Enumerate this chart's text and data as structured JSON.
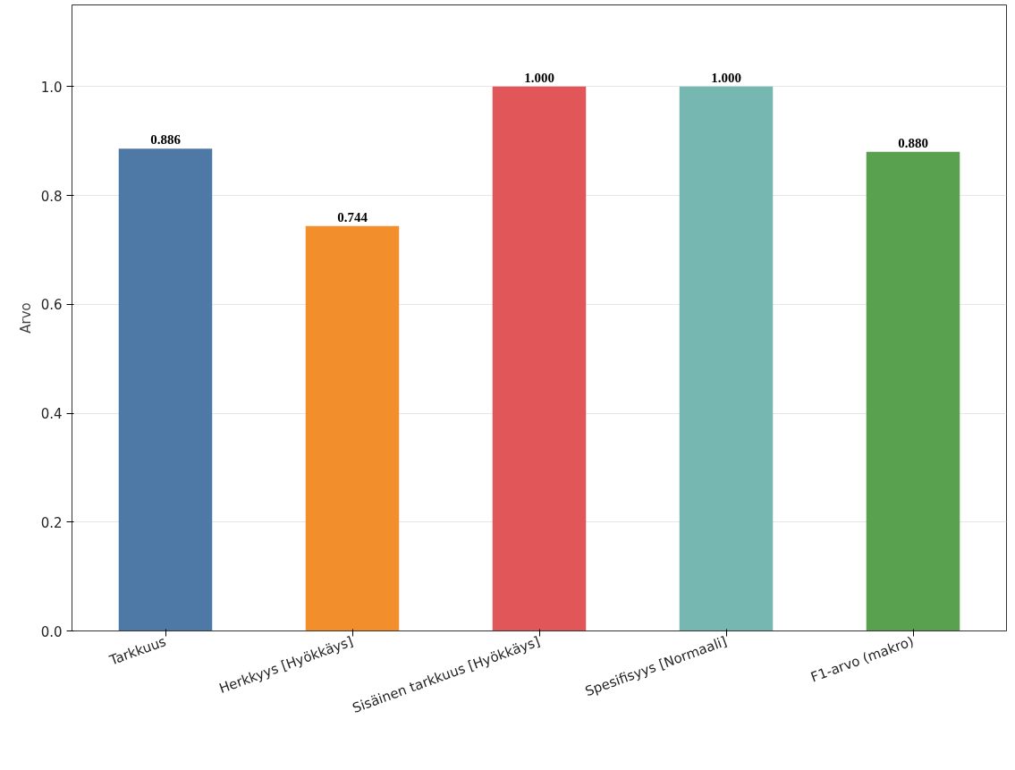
{
  "chart_data": {
    "type": "bar",
    "ylabel": "Arvo",
    "categories": [
      "Tarkkuus",
      "Herkkyys [Hyökkäys]",
      "Sisäinen tarkkuus [Hyökkäys]",
      "Spesifisyys [Normaali]",
      "F1-arvo (makro)"
    ],
    "values": [
      0.886,
      0.744,
      1.0,
      1.0,
      0.88
    ],
    "value_labels": [
      "0.886",
      "0.744",
      "1.000",
      "1.000",
      "0.880"
    ],
    "colors": [
      "#4e79a7",
      "#f28e2b",
      "#e15759",
      "#76b7b2",
      "#59a14f"
    ],
    "ylim": [
      0,
      1.15
    ],
    "yticks": [
      {
        "value": 0,
        "label": "0.0"
      },
      {
        "value": 0.2,
        "label": "0.2"
      },
      {
        "value": 0.4,
        "label": "0.4"
      },
      {
        "value": 0.6,
        "label": "0.6"
      },
      {
        "value": 0.8,
        "label": "0.8"
      },
      {
        "value": 1.0,
        "label": "1.0"
      }
    ],
    "grid": "y"
  }
}
